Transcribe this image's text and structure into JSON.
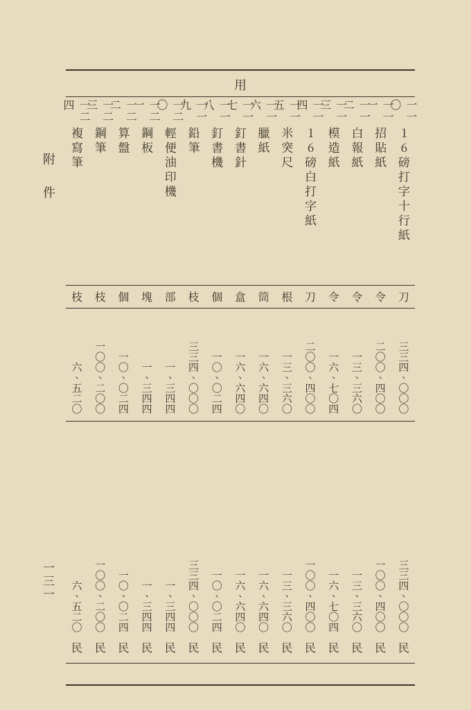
{
  "header": "用",
  "side_label": "附件",
  "page_number": "一三一",
  "columns": [
    {
      "num": "一一〇",
      "name": "16磅打字十行紙",
      "unit": "刀",
      "amount1": "三三四、〇〇〇",
      "amount2": "三三四、〇〇〇",
      "suffix": "民"
    },
    {
      "num": "一一一",
      "name": "招貼紙",
      "unit": "令",
      "amount1": "二〇〇、四〇〇",
      "amount2": "一〇〇、四〇〇",
      "suffix": "民"
    },
    {
      "num": "一一二",
      "name": "白報紙",
      "unit": "令",
      "amount1": "一三、三六〇",
      "amount2": "一三、三六〇",
      "suffix": "民"
    },
    {
      "num": "一一三",
      "name": "模造紙",
      "unit": "令",
      "amount1": "一六、七〇四",
      "amount2": "一六、七〇四",
      "suffix": "民"
    },
    {
      "num": "一一四",
      "name": "16磅白打字紙",
      "unit": "刀",
      "amount1": "二〇〇、四〇〇",
      "amount2": "一〇〇、四〇〇",
      "suffix": "民"
    },
    {
      "num": "一一五",
      "name": "米突尺",
      "unit": "根",
      "amount1": "一三、三六〇",
      "amount2": "一三、三六〇",
      "suffix": "民"
    },
    {
      "num": "一一六",
      "name": "臘紙",
      "unit": "筒",
      "amount1": "一六、六四〇",
      "amount2": "一六、六四〇",
      "suffix": "民"
    },
    {
      "num": "一一七",
      "name": "釘書針",
      "unit": "盒",
      "amount1": "一六、六四〇",
      "amount2": "一六、六四〇",
      "suffix": "民"
    },
    {
      "num": "一一八",
      "name": "釘書機",
      "unit": "個",
      "amount1": "一〇、〇二四",
      "amount2": "一〇、〇二四",
      "suffix": "民"
    },
    {
      "num": "一一九",
      "name": "鉛筆",
      "unit": "枝",
      "amount1": "三三四、〇〇〇",
      "amount2": "三三四、〇〇〇",
      "suffix": "民"
    },
    {
      "num": "一二〇",
      "name": "輕便油印機",
      "unit": "部",
      "amount1": "一、三四四",
      "amount2": "一、三四四",
      "suffix": "民"
    },
    {
      "num": "一二一",
      "name": "鋼板",
      "unit": "塊",
      "amount1": "一、三四四",
      "amount2": "一、三四四",
      "suffix": "民"
    },
    {
      "num": "一二二",
      "name": "算盤",
      "unit": "個",
      "amount1": "一〇、〇二四",
      "amount2": "一〇、〇二四",
      "suffix": "民"
    },
    {
      "num": "一二三",
      "name": "鋼筆",
      "unit": "枝",
      "amount1": "一〇〇、二〇〇",
      "amount2": "一〇〇、二〇〇",
      "suffix": "民"
    },
    {
      "num": "一二四",
      "name": "複寫筆",
      "unit": "枝",
      "amount1": "六、五二〇",
      "amount2": "六、五二〇",
      "suffix": "民"
    }
  ]
}
